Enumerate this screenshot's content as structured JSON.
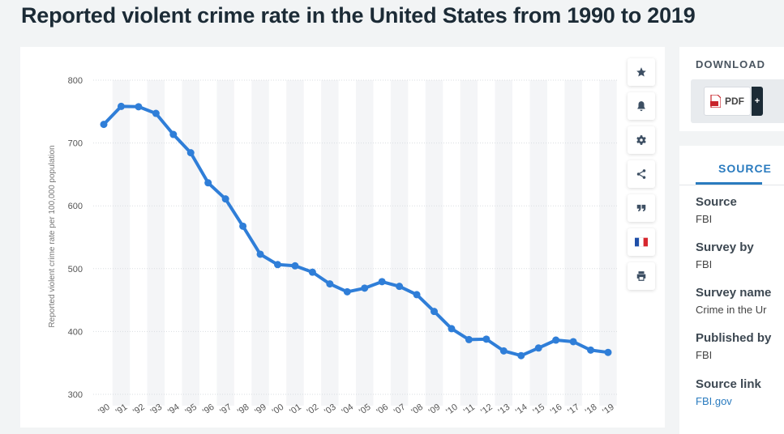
{
  "page": {
    "title": "Reported violent crime rate in the United States from 1990 to 2019"
  },
  "toolbar": {
    "icons": [
      "star-icon",
      "bell-icon",
      "gear-icon",
      "share-icon",
      "quote-icon",
      "french-flag-icon",
      "print-icon"
    ]
  },
  "download": {
    "title": "DOWNLOAD",
    "pdf_label": "PDF",
    "plus_label": "+"
  },
  "source": {
    "tab_label": "SOURCE",
    "items": [
      {
        "label": "Source",
        "value": "FBI"
      },
      {
        "label": "Survey by",
        "value": "FBI"
      },
      {
        "label": "Survey name",
        "value": "Crime in the Ur"
      },
      {
        "label": "Published by",
        "value": "FBI"
      },
      {
        "label": "Source link",
        "value": "FBI.gov"
      }
    ]
  },
  "colors": {
    "line": "#2f7ed8",
    "band": "#f4f5f7",
    "grid": "#d9dde1",
    "title": "#1c2b36",
    "accent": "#2a7bbf"
  },
  "chart_data": {
    "type": "line",
    "title": "",
    "xlabel": "",
    "ylabel": "Reported violent crime rate per 100,000 population",
    "ylim": [
      300,
      800
    ],
    "yticks": [
      300,
      400,
      500,
      600,
      700,
      800
    ],
    "grid": true,
    "categories": [
      "'90",
      "'91",
      "'92",
      "'93",
      "'94",
      "'95",
      "'96",
      "'97",
      "'98",
      "'99",
      "'00",
      "'01",
      "'02",
      "'03",
      "'04",
      "'05",
      "'06",
      "'07",
      "'08",
      "'09",
      "'10",
      "'11",
      "'12",
      "'13",
      "'14",
      "'15",
      "'16",
      "'17",
      "'18",
      "'19"
    ],
    "series": [
      {
        "values": [
          729.6,
          758.2,
          757.7,
          747.1,
          713.6,
          684.5,
          636.6,
          611.0,
          567.6,
          523.0,
          506.5,
          504.5,
          494.4,
          475.8,
          463.2,
          469.0,
          479.3,
          471.8,
          458.6,
          431.9,
          404.5,
          387.1,
          387.8,
          369.1,
          361.6,
          373.7,
          386.3,
          383.8,
          370.4,
          366.7
        ]
      }
    ]
  }
}
